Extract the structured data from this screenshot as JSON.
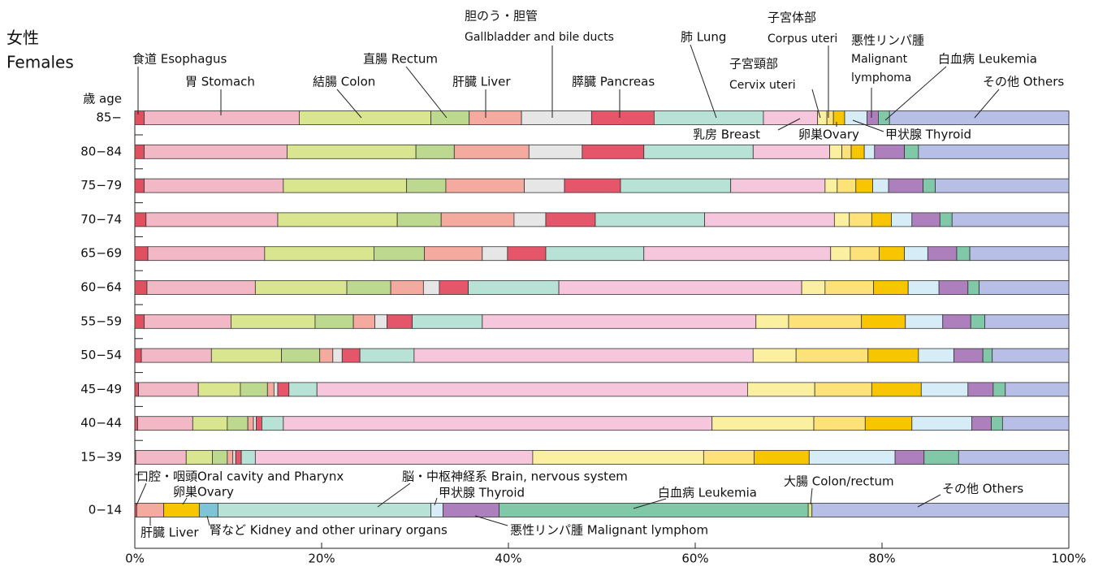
{
  "chart_data": [
    {
      "type": "bar",
      "stacked": true,
      "orientation": "horizontal",
      "title": "女性",
      "subtitle": "Females",
      "ylabel": "歳 age",
      "categories": [
        "85−",
        "80−84",
        "75−79",
        "70−74",
        "65−69",
        "60−64",
        "55−59",
        "50−54",
        "45−49",
        "40−44",
        "15−39"
      ],
      "xlim": [
        0,
        100
      ],
      "series": [
        {
          "name": [
            "食道 Esophagus"
          ],
          "color": "#e05060",
          "values": [
            1.0,
            1.0,
            1.0,
            1.2,
            1.4,
            1.3,
            1.0,
            0.7,
            0.4,
            0.3,
            0.1
          ]
        },
        {
          "name": [
            "胃 Stomach"
          ],
          "color": "#f2b8c6",
          "values": [
            16.6,
            15.3,
            14.9,
            14.1,
            12.5,
            11.6,
            9.3,
            7.5,
            6.4,
            5.9,
            5.4
          ]
        },
        {
          "name": [
            "結腸 Colon"
          ],
          "color": "#d9e68f",
          "values": [
            14.1,
            13.8,
            13.2,
            12.8,
            11.7,
            9.8,
            9.0,
            7.5,
            4.5,
            3.7,
            2.8
          ]
        },
        {
          "name": [
            "直腸 Rectum"
          ],
          "color": "#bcd98f",
          "values": [
            4.1,
            4.1,
            4.2,
            4.7,
            5.4,
            4.7,
            4.1,
            4.1,
            2.9,
            2.2,
            1.6
          ]
        },
        {
          "name": [
            "肝臓 Liver"
          ],
          "color": "#f5aaa0",
          "values": [
            5.6,
            8.0,
            8.4,
            7.8,
            6.2,
            3.5,
            2.3,
            1.4,
            0.7,
            0.6,
            0.6
          ]
        },
        {
          "name": [
            "胆のう・胆管",
            "Gallbladder and bile ducts"
          ],
          "color": "#e6e6e6",
          "values": [
            7.5,
            5.7,
            4.3,
            3.4,
            2.7,
            1.7,
            1.3,
            1.0,
            0.4,
            0.3,
            0.3
          ]
        },
        {
          "name": [
            "膵臓 Pancreas"
          ],
          "color": "#e5566a",
          "values": [
            6.7,
            6.6,
            6.0,
            5.3,
            4.1,
            3.1,
            2.7,
            1.9,
            1.2,
            0.6,
            0.6
          ]
        },
        {
          "name": [
            "肺 Lung"
          ],
          "color": "#b8e2d6",
          "values": [
            11.7,
            11.7,
            11.8,
            11.7,
            10.5,
            9.7,
            7.5,
            5.8,
            3.0,
            2.3,
            1.5
          ]
        },
        {
          "name": [
            "乳房 Breast"
          ],
          "color": "#f6c6dc",
          "values": [
            5.8,
            8.2,
            10.1,
            13.9,
            20.0,
            26.0,
            29.3,
            36.3,
            46.1,
            45.9,
            29.7
          ]
        },
        {
          "name": [
            "子宮頸部",
            "Cervix uteri"
          ],
          "color": "#fbf0a0",
          "values": [
            1.0,
            1.3,
            1.3,
            1.6,
            2.1,
            2.5,
            3.5,
            4.6,
            7.2,
            10.9,
            18.3
          ]
        },
        {
          "name": [
            "子宮体部",
            "Corpus uteri"
          ],
          "color": "#fde27a",
          "values": [
            0.7,
            1.0,
            2.0,
            2.4,
            3.1,
            5.2,
            7.8,
            7.7,
            6.1,
            5.5,
            5.4
          ]
        },
        {
          "name": [
            "卵巣Ovary"
          ],
          "color": "#f7c600",
          "values": [
            1.2,
            1.4,
            1.8,
            2.1,
            2.7,
            3.7,
            4.7,
            5.4,
            5.3,
            5.0,
            5.9
          ]
        },
        {
          "name": [
            "甲状腺 Thyroid"
          ],
          "color": "#d6ecf7",
          "values": [
            2.4,
            1.1,
            1.7,
            2.2,
            2.5,
            3.3,
            4.0,
            3.8,
            5.0,
            6.4,
            9.2
          ]
        },
        {
          "name": [
            "悪性リンパ腫",
            "Malignant",
            "lymphoma"
          ],
          "color": "#ad7fbd",
          "values": [
            1.2,
            3.2,
            3.7,
            3.0,
            3.1,
            3.1,
            3.0,
            3.1,
            2.7,
            2.1,
            3.1
          ]
        },
        {
          "name": [
            "白血病 Leukemia"
          ],
          "color": "#80c8a8",
          "values": [
            1.2,
            1.5,
            1.3,
            1.3,
            1.4,
            1.2,
            1.5,
            1.0,
            1.3,
            1.2,
            3.7
          ]
        },
        {
          "name": [
            "その他 Others"
          ],
          "color": "#b8bfe6",
          "values": [
            19.2,
            16.1,
            14.3,
            12.5,
            10.6,
            9.6,
            9.0,
            8.2,
            6.8,
            7.1,
            11.8
          ]
        }
      ]
    },
    {
      "type": "bar",
      "stacked": true,
      "orientation": "horizontal",
      "categories": [
        "0−14"
      ],
      "xlim": [
        0,
        100
      ],
      "xticks": [
        {
          "value": 0,
          "label": "0%"
        },
        {
          "value": 20,
          "label": "20%"
        },
        {
          "value": 40,
          "label": "40%"
        },
        {
          "value": 60,
          "label": "60%"
        },
        {
          "value": 80,
          "label": "80%"
        },
        {
          "value": 100,
          "label": "100%"
        }
      ],
      "series": [
        {
          "name": [
            "口腔・咽頭Oral cavity and Pharynx"
          ],
          "color": "#e05060",
          "values": [
            0.2
          ]
        },
        {
          "name": [
            "肝臓 Liver"
          ],
          "color": "#f5aaa0",
          "values": [
            2.9
          ]
        },
        {
          "name": [
            "卵巣Ovary"
          ],
          "color": "#f7c600",
          "values": [
            3.8
          ]
        },
        {
          "name": [
            "腎など Kidney and other urinary organs"
          ],
          "color": "#7fc4d6",
          "values": [
            2.0
          ]
        },
        {
          "name": [
            "脳・中枢神経系 Brain, nervous system"
          ],
          "color": "#b8e2d6",
          "values": [
            22.8
          ]
        },
        {
          "name": [
            "甲状腺 Thyroid"
          ],
          "color": "#d6ecf7",
          "values": [
            1.3
          ]
        },
        {
          "name": [
            "悪性リンパ腫 Malignant lymphom"
          ],
          "color": "#ad7fbd",
          "values": [
            6.0
          ]
        },
        {
          "name": [
            "白血病 Leukemia"
          ],
          "color": "#80c8a8",
          "values": [
            33.1
          ]
        },
        {
          "name": [
            "大腸 Colon/rectum"
          ],
          "color": "#d9e68f",
          "values": [
            0.4
          ]
        },
        {
          "name": [
            "その他 Others"
          ],
          "color": "#b8bfe6",
          "values": [
            27.5
          ]
        }
      ]
    }
  ]
}
